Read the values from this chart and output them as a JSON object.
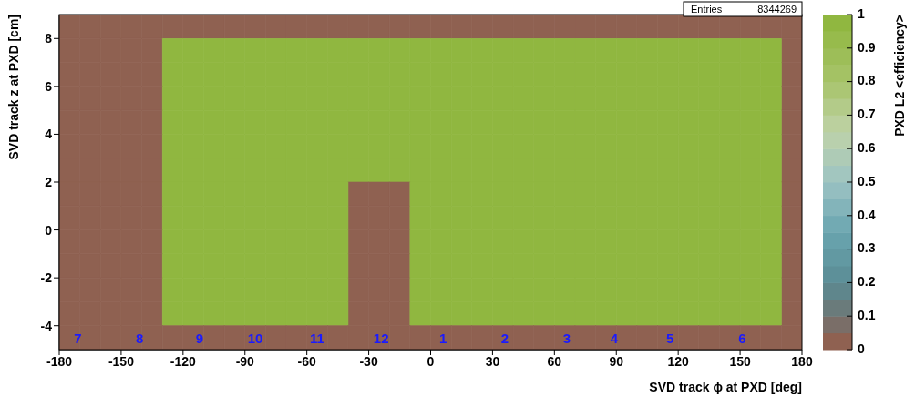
{
  "chart_data": {
    "type": "scatter",
    "marker": "square",
    "xlabel": "SVD track ϕ at PXD [deg]",
    "ylabel": "SVD track z at PXD [cm]",
    "clabel": "PXD L2 <efficiency>",
    "xlim": [
      -180,
      180
    ],
    "xticks": [
      -180,
      -150,
      -120,
      -90,
      -60,
      -30,
      0,
      30,
      60,
      90,
      120,
      150,
      180
    ],
    "ylim": [
      -5,
      9
    ],
    "yticks": [
      -4,
      -2,
      0,
      2,
      4,
      6,
      8
    ],
    "clim": [
      0,
      1
    ],
    "cticks": [
      0,
      0.1,
      0.2,
      0.3,
      0.4,
      0.5,
      0.6,
      0.7,
      0.8,
      0.9,
      1
    ],
    "x": [
      -175,
      -165,
      -155,
      -145,
      -135,
      -125,
      -115,
      -105,
      -95,
      -85,
      -75,
      -65,
      -55,
      -45,
      -35,
      -25,
      -15,
      -5,
      5,
      15,
      25,
      35,
      45,
      55,
      65,
      75,
      85,
      95,
      105,
      115,
      125,
      135,
      145,
      155,
      165,
      175
    ],
    "series": [
      {
        "color": "#8f6151",
        "values": [
          8.5,
          8.5,
          8.5,
          8.5,
          8.5,
          8.5,
          8.5,
          8.5,
          8.5,
          8.5,
          8.5,
          8.5,
          8.5,
          8.5,
          8.5,
          8.5,
          8.5,
          8.5,
          8.5,
          8.5,
          8.5,
          8.5,
          8.5,
          8.5,
          8.5,
          8.5,
          8.5,
          8.5,
          8.5,
          8.5,
          8.5,
          8.5,
          8.5,
          8.5,
          8.5,
          8.5
        ],
        "cvalues": [
          0,
          0,
          0,
          0,
          0,
          0,
          0,
          0,
          0,
          0,
          0,
          0,
          0,
          0,
          0,
          0,
          0,
          0,
          0,
          0,
          0,
          0,
          0,
          0,
          0,
          0,
          0,
          0,
          0,
          0,
          0,
          0,
          0,
          0,
          0,
          0
        ]
      },
      {
        "color": "#8f6151",
        "x": [
          -175,
          -165,
          -155,
          -145,
          -135,
          175
        ],
        "values": [
          7.5,
          7.5,
          7.5,
          7.5,
          7.5,
          7.5
        ],
        "cvalues": [
          0,
          0,
          0,
          0,
          0,
          0
        ]
      },
      {
        "color": "#90b740",
        "x": [
          -125,
          -115,
          -105,
          -95,
          -85,
          -75,
          -65,
          -55,
          -45,
          -35,
          -25,
          -15,
          -5,
          5,
          15,
          25,
          35,
          45,
          55,
          65,
          75,
          85,
          95,
          105,
          115,
          125,
          135,
          145,
          155,
          165
        ],
        "values": [
          7.5,
          7.5,
          7.5,
          7.5,
          7.5,
          7.5,
          7.5,
          7.5,
          7.5,
          7.5,
          7.5,
          7.5,
          7.5,
          7.5,
          7.5,
          7.5,
          7.5,
          7.5,
          7.5,
          7.5,
          7.5,
          7.5,
          7.5,
          7.5,
          7.5,
          7.5,
          7.5,
          7.5,
          7.5,
          7.5
        ],
        "cvalues": [
          0.95,
          0.95,
          0.95,
          0.95,
          0.95,
          0.95,
          0.95,
          0.95,
          0.95,
          0.95,
          0.95,
          0.95,
          0.95,
          0.95,
          0.95,
          0.95,
          0.95,
          0.95,
          0.95,
          0.95,
          0.95,
          0.95,
          0.95,
          0.95,
          0.95,
          0.95,
          0.95,
          0.95,
          0.95,
          0.95
        ]
      },
      {
        "color": "#8f6151",
        "x": [
          -175,
          -165,
          -155,
          -145,
          -135,
          175
        ],
        "values": [
          6.5,
          6.5,
          6.5,
          6.5,
          6.5,
          6.5
        ],
        "cvalues": [
          0,
          0,
          0,
          0,
          0,
          0
        ]
      },
      {
        "color": "#90b740",
        "x": [
          -125,
          -115,
          -105,
          -95,
          -85,
          -75,
          -65,
          -55,
          -45,
          -35,
          -25,
          -15,
          -5,
          5,
          15,
          25,
          35,
          45,
          55,
          65,
          75,
          85,
          95,
          105,
          115,
          125,
          135,
          145,
          155,
          165
        ],
        "values": [
          6.5,
          6.5,
          6.5,
          6.5,
          6.5,
          6.5,
          6.5,
          6.5,
          6.5,
          6.5,
          6.5,
          6.5,
          6.5,
          6.5,
          6.5,
          6.5,
          6.5,
          6.5,
          6.5,
          6.5,
          6.5,
          6.5,
          6.5,
          6.5,
          6.5,
          6.5,
          6.5,
          6.5,
          6.5,
          6.5
        ],
        "cvalues": [
          0.95,
          0.95,
          0.95,
          0.95,
          0.95,
          0.95,
          0.95,
          0.95,
          0.95,
          0.95,
          0.95,
          0.95,
          0.95,
          0.95,
          0.95,
          0.95,
          0.95,
          0.95,
          0.95,
          0.95,
          0.95,
          0.95,
          0.95,
          0.95,
          0.95,
          0.95,
          0.95,
          0.95,
          0.95,
          0.95
        ]
      },
      {
        "color": "#8f6151",
        "x": [
          -175,
          -165,
          -155,
          -145,
          -135,
          175
        ],
        "values": [
          5.5,
          5.5,
          5.5,
          5.5,
          5.5,
          5.5
        ],
        "cvalues": [
          0,
          0,
          0,
          0,
          0,
          0
        ]
      },
      {
        "color": "#90b740",
        "x": [
          -125,
          -115,
          -105,
          -95,
          -85,
          -75,
          -65,
          -55,
          -45,
          -35,
          -25,
          -15,
          -5,
          5,
          15,
          25,
          35,
          45,
          55,
          65,
          75,
          85,
          95,
          105,
          115,
          125,
          135,
          145,
          155,
          165
        ],
        "values": [
          5.5,
          5.5,
          5.5,
          5.5,
          5.5,
          5.5,
          5.5,
          5.5,
          5.5,
          5.5,
          5.5,
          5.5,
          5.5,
          5.5,
          5.5,
          5.5,
          5.5,
          5.5,
          5.5,
          5.5,
          5.5,
          5.5,
          5.5,
          5.5,
          5.5,
          5.5,
          5.5,
          5.5,
          5.5,
          5.5
        ],
        "cvalues": [
          0.95,
          0.95,
          0.95,
          0.95,
          0.95,
          0.95,
          0.95,
          0.95,
          0.95,
          0.95,
          0.95,
          0.95,
          0.95,
          0.95,
          0.95,
          0.95,
          0.95,
          0.95,
          0.95,
          0.95,
          0.95,
          0.95,
          0.95,
          0.95,
          0.95,
          0.95,
          0.95,
          0.95,
          0.95,
          0.95
        ]
      },
      {
        "color": "#8f6151",
        "x": [
          -175,
          -165,
          -155,
          -145,
          -135,
          175
        ],
        "values": [
          4.5,
          4.5,
          4.5,
          4.5,
          4.5,
          4.5
        ],
        "cvalues": [
          0,
          0,
          0,
          0,
          0,
          0
        ]
      },
      {
        "color": "#90b740",
        "x": [
          -125,
          -115,
          -105,
          -95,
          -85,
          -75,
          -65,
          -55,
          -45,
          -35,
          -25,
          -15,
          -5,
          5,
          15,
          25,
          35,
          45,
          55,
          65,
          75,
          85,
          95,
          105,
          115,
          125,
          135,
          145,
          155,
          165
        ],
        "values": [
          4.5,
          4.5,
          4.5,
          4.5,
          4.5,
          4.5,
          4.5,
          4.5,
          4.5,
          4.5,
          4.5,
          4.5,
          4.5,
          4.5,
          4.5,
          4.5,
          4.5,
          4.5,
          4.5,
          4.5,
          4.5,
          4.5,
          4.5,
          4.5,
          4.5,
          4.5,
          4.5,
          4.5,
          4.5,
          4.5
        ],
        "cvalues": [
          0.95,
          0.95,
          0.95,
          0.95,
          0.95,
          0.95,
          0.95,
          0.95,
          0.95,
          0.95,
          0.95,
          0.95,
          0.95,
          0.95,
          0.95,
          0.95,
          0.95,
          0.95,
          0.95,
          0.95,
          0.95,
          0.95,
          0.95,
          0.95,
          0.95,
          0.95,
          0.95,
          0.95,
          0.95,
          0.95
        ]
      },
      {
        "color": "#8f6151",
        "x": [
          -175,
          -165,
          -155,
          -145,
          -135,
          175
        ],
        "values": [
          3.5,
          3.5,
          3.5,
          3.5,
          3.5,
          3.5
        ],
        "cvalues": [
          0,
          0,
          0,
          0,
          0,
          0
        ]
      },
      {
        "color": "#90b740",
        "x": [
          -125,
          -115,
          -105,
          -95,
          -85,
          -75,
          -65,
          -55,
          -45,
          -35,
          -25,
          -15,
          -5,
          5,
          15,
          25,
          35,
          45,
          55,
          65,
          75,
          85,
          95,
          105,
          115,
          125,
          135,
          145,
          155,
          165
        ],
        "values": [
          3.5,
          3.5,
          3.5,
          3.5,
          3.5,
          3.5,
          3.5,
          3.5,
          3.5,
          3.5,
          3.5,
          3.5,
          3.5,
          3.5,
          3.5,
          3.5,
          3.5,
          3.5,
          3.5,
          3.5,
          3.5,
          3.5,
          3.5,
          3.5,
          3.5,
          3.5,
          3.5,
          3.5,
          3.5,
          3.5
        ],
        "cvalues": [
          0.95,
          0.95,
          0.95,
          0.95,
          0.95,
          0.95,
          0.95,
          0.95,
          0.95,
          0.95,
          0.95,
          0.95,
          0.95,
          0.95,
          0.95,
          0.95,
          0.95,
          0.95,
          0.95,
          0.95,
          0.95,
          0.95,
          0.95,
          0.95,
          0.95,
          0.95,
          0.95,
          0.95,
          0.95,
          0.95
        ]
      },
      {
        "color": "#8f6151",
        "x": [
          -175,
          -165,
          -155,
          -145,
          -135,
          175
        ],
        "values": [
          2.5,
          2.5,
          2.5,
          2.5,
          2.5,
          2.5
        ],
        "cvalues": [
          0,
          0,
          0,
          0,
          0,
          0
        ]
      },
      {
        "color": "#90b740",
        "x": [
          -125,
          -115,
          -105,
          -95,
          -85,
          -75,
          -65,
          -55,
          -45,
          -35,
          -25,
          -15,
          -5,
          5,
          15,
          25,
          35,
          45,
          55,
          65,
          75,
          85,
          95,
          105,
          115,
          125,
          135,
          145,
          155,
          165
        ],
        "values": [
          2.5,
          2.5,
          2.5,
          2.5,
          2.5,
          2.5,
          2.5,
          2.5,
          2.5,
          2.5,
          2.5,
          2.5,
          2.5,
          2.5,
          2.5,
          2.5,
          2.5,
          2.5,
          2.5,
          2.5,
          2.5,
          2.5,
          2.5,
          2.5,
          2.5,
          2.5,
          2.5,
          2.5,
          2.5,
          2.5
        ],
        "cvalues": [
          0.95,
          0.95,
          0.95,
          0.95,
          0.95,
          0.95,
          0.95,
          0.95,
          0.95,
          0.95,
          0.95,
          0.95,
          0.95,
          0.95,
          0.95,
          0.95,
          0.95,
          0.95,
          0.95,
          0.95,
          0.95,
          0.95,
          0.95,
          0.95,
          0.95,
          0.95,
          0.95,
          0.95,
          0.95,
          0.95
        ]
      },
      {
        "color": "#8f6151",
        "x": [
          -175,
          -165,
          -155,
          -145,
          -135,
          -35,
          -25,
          -15,
          175
        ],
        "values": [
          1.5,
          1.5,
          1.5,
          1.5,
          1.5,
          1.5,
          1.5,
          1.5,
          1.5
        ],
        "cvalues": [
          0,
          0,
          0,
          0,
          0,
          0,
          0,
          0,
          0
        ]
      },
      {
        "color": "#90b740",
        "x": [
          -125,
          -115,
          -105,
          -95,
          -85,
          -75,
          -65,
          -55,
          -45,
          -5,
          5,
          15,
          25,
          35,
          45,
          55,
          65,
          75,
          85,
          95,
          105,
          115,
          125,
          135,
          145,
          155,
          165
        ],
        "values": [
          1.5,
          1.5,
          1.5,
          1.5,
          1.5,
          1.5,
          1.5,
          1.5,
          1.5,
          1.5,
          1.5,
          1.5,
          1.5,
          1.5,
          1.5,
          1.5,
          1.5,
          1.5,
          1.5,
          1.5,
          1.5,
          1.5,
          1.5,
          1.5,
          1.5,
          1.5,
          1.5
        ],
        "cvalues": [
          0.95,
          0.95,
          0.95,
          0.95,
          0.95,
          0.95,
          0.95,
          0.95,
          0.95,
          0.95,
          0.95,
          0.95,
          0.95,
          0.95,
          0.95,
          0.95,
          0.95,
          0.95,
          0.95,
          0.95,
          0.95,
          0.95,
          0.95,
          0.95,
          0.95,
          0.95,
          0.95
        ]
      },
      {
        "color": "#8f6151",
        "x": [
          -175,
          -165,
          -155,
          -145,
          -135,
          -35,
          -25,
          -15,
          175
        ],
        "values": [
          0.5,
          0.5,
          0.5,
          0.5,
          0.5,
          0.5,
          0.5,
          0.5,
          0.5
        ],
        "cvalues": [
          0,
          0,
          0,
          0,
          0,
          0,
          0,
          0,
          0
        ]
      },
      {
        "color": "#90b740",
        "x": [
          -125,
          -115,
          -105,
          -95,
          -85,
          -75,
          -65,
          -55,
          -45,
          -5,
          5,
          15,
          25,
          35,
          45,
          55,
          65,
          75,
          85,
          95,
          105,
          115,
          125,
          135,
          145,
          155,
          165
        ],
        "values": [
          0.5,
          0.5,
          0.5,
          0.5,
          0.5,
          0.5,
          0.5,
          0.5,
          0.5,
          0.5,
          0.5,
          0.5,
          0.5,
          0.5,
          0.5,
          0.5,
          0.5,
          0.5,
          0.5,
          0.5,
          0.5,
          0.5,
          0.5,
          0.5,
          0.5,
          0.5,
          0.5
        ],
        "cvalues": [
          0.95,
          0.95,
          0.95,
          0.95,
          0.95,
          0.95,
          0.95,
          0.95,
          0.95,
          0.95,
          0.95,
          0.95,
          0.95,
          0.95,
          0.95,
          0.95,
          0.95,
          0.95,
          0.95,
          0.95,
          0.95,
          0.95,
          0.95,
          0.95,
          0.95,
          0.95,
          0.95
        ]
      },
      {
        "color": "#8f6151",
        "x": [
          -175,
          -165,
          -155,
          -145,
          -135,
          -35,
          -25,
          -15,
          175
        ],
        "values": [
          -0.5,
          -0.5,
          -0.5,
          -0.5,
          -0.5,
          -0.5,
          -0.5,
          -0.5,
          -0.5
        ],
        "cvalues": [
          0,
          0,
          0,
          0,
          0,
          0,
          0,
          0,
          0
        ]
      },
      {
        "color": "#90b740",
        "x": [
          -125,
          -115,
          -105,
          -95,
          -85,
          -75,
          -65,
          -55,
          -45,
          -5,
          5,
          15,
          25,
          35,
          45,
          55,
          65,
          75,
          85,
          95,
          105,
          115,
          125,
          135,
          145,
          155,
          165
        ],
        "values": [
          -0.5,
          -0.5,
          -0.5,
          -0.5,
          -0.5,
          -0.5,
          -0.5,
          -0.5,
          -0.5,
          -0.5,
          -0.5,
          -0.5,
          -0.5,
          -0.5,
          -0.5,
          -0.5,
          -0.5,
          -0.5,
          -0.5,
          -0.5,
          -0.5,
          -0.5,
          -0.5,
          -0.5,
          -0.5,
          -0.5,
          -0.5
        ],
        "cvalues": [
          0.95,
          0.95,
          0.95,
          0.95,
          0.95,
          0.95,
          0.95,
          0.95,
          0.95,
          0.95,
          0.95,
          0.95,
          0.95,
          0.95,
          0.95,
          0.95,
          0.95,
          0.95,
          0.95,
          0.95,
          0.95,
          0.95,
          0.95,
          0.95,
          0.95,
          0.95,
          0.95
        ]
      },
      {
        "color": "#8f6151",
        "x": [
          -175,
          -165,
          -155,
          -145,
          -135,
          -35,
          -25,
          -15,
          175
        ],
        "values": [
          -1.5,
          -1.5,
          -1.5,
          -1.5,
          -1.5,
          -1.5,
          -1.5,
          -1.5,
          -1.5
        ],
        "cvalues": [
          0,
          0,
          0,
          0,
          0,
          0,
          0,
          0,
          0
        ]
      },
      {
        "color": "#90b740",
        "x": [
          -125,
          -115,
          -105,
          -95,
          -85,
          -75,
          -65,
          -55,
          -45,
          -5,
          5,
          15,
          25,
          35,
          45,
          55,
          65,
          75,
          85,
          95,
          105,
          115,
          125,
          135,
          145,
          155,
          165
        ],
        "values": [
          -1.5,
          -1.5,
          -1.5,
          -1.5,
          -1.5,
          -1.5,
          -1.5,
          -1.5,
          -1.5,
          -1.5,
          -1.5,
          -1.5,
          -1.5,
          -1.5,
          -1.5,
          -1.5,
          -1.5,
          -1.5,
          -1.5,
          -1.5,
          -1.5,
          -1.5,
          -1.5,
          -1.5,
          -1.5,
          -1.5,
          -1.5
        ],
        "cvalues": [
          0.95,
          0.95,
          0.95,
          0.95,
          0.95,
          0.95,
          0.95,
          0.95,
          0.95,
          0.95,
          0.95,
          0.95,
          0.95,
          0.95,
          0.95,
          0.95,
          0.95,
          0.95,
          0.95,
          0.95,
          0.95,
          0.95,
          0.95,
          0.95,
          0.95,
          0.95,
          0.95
        ]
      },
      {
        "color": "#8f6151",
        "x": [
          -175,
          -165,
          -155,
          -145,
          -135,
          -35,
          -25,
          -15,
          175
        ],
        "values": [
          -2.5,
          -2.5,
          -2.5,
          -2.5,
          -2.5,
          -2.5,
          -2.5,
          -2.5,
          -2.5
        ],
        "cvalues": [
          0,
          0,
          0,
          0,
          0,
          0,
          0,
          0,
          0
        ]
      },
      {
        "color": "#90b740",
        "x": [
          -125,
          -115,
          -105,
          -95,
          -85,
          -75,
          -65,
          -55,
          -45,
          -5,
          5,
          15,
          25,
          35,
          45,
          55,
          65,
          75,
          85,
          95,
          105,
          115,
          125,
          135,
          145,
          155,
          165
        ],
        "values": [
          -2.5,
          -2.5,
          -2.5,
          -2.5,
          -2.5,
          -2.5,
          -2.5,
          -2.5,
          -2.5,
          -2.5,
          -2.5,
          -2.5,
          -2.5,
          -2.5,
          -2.5,
          -2.5,
          -2.5,
          -2.5,
          -2.5,
          -2.5,
          -2.5,
          -2.5,
          -2.5,
          -2.5,
          -2.5,
          -2.5,
          -2.5
        ],
        "cvalues": [
          0.95,
          0.95,
          0.95,
          0.95,
          0.95,
          0.95,
          0.95,
          0.95,
          0.95,
          0.95,
          0.95,
          0.95,
          0.95,
          0.95,
          0.95,
          0.95,
          0.95,
          0.95,
          0.95,
          0.95,
          0.95,
          0.95,
          0.95,
          0.95,
          0.95,
          0.95,
          0.95
        ]
      },
      {
        "color": "#8f6151",
        "x": [
          -175,
          -165,
          -155,
          -145,
          -135,
          -35,
          -25,
          -15,
          175
        ],
        "values": [
          -3.5,
          -3.5,
          -3.5,
          -3.5,
          -3.5,
          -3.5,
          -3.5,
          -3.5,
          -3.5
        ],
        "cvalues": [
          0,
          0,
          0,
          0,
          0,
          0,
          0,
          0,
          0
        ]
      },
      {
        "color": "#90b740",
        "x": [
          -125,
          -115,
          -105,
          -95,
          -85,
          -75,
          -65,
          -55,
          -45,
          -5,
          5,
          15,
          25,
          35,
          45,
          55,
          65,
          75,
          85,
          95,
          105,
          115,
          125,
          135,
          145,
          155,
          165
        ],
        "values": [
          -3.5,
          -3.5,
          -3.5,
          -3.5,
          -3.5,
          -3.5,
          -3.5,
          -3.5,
          -3.5,
          -3.5,
          -3.5,
          -3.5,
          -3.5,
          -3.5,
          -3.5,
          -3.5,
          -3.5,
          -3.5,
          -3.5,
          -3.5,
          -3.5,
          -3.5,
          -3.5,
          -3.5,
          -3.5,
          -3.5,
          -3.5
        ],
        "cvalues": [
          0.95,
          0.95,
          0.95,
          0.95,
          0.95,
          0.95,
          0.95,
          0.95,
          0.95,
          0.95,
          0.95,
          0.95,
          0.95,
          0.95,
          0.95,
          0.95,
          0.95,
          0.95,
          0.95,
          0.95,
          0.95,
          0.95,
          0.95,
          0.95,
          0.95,
          0.95,
          0.95
        ]
      },
      {
        "color": "#8f6151",
        "values": [
          -4.5,
          -4.5,
          -4.5,
          -4.5,
          -4.5,
          -4.5,
          -4.5,
          -4.5,
          -4.5,
          -4.5,
          -4.5,
          -4.5,
          -4.5,
          -4.5,
          -4.5,
          -4.5,
          -4.5,
          -4.5,
          -4.5,
          -4.5,
          -4.5,
          -4.5,
          -4.5,
          -4.5,
          -4.5,
          -4.5,
          -4.5,
          -4.5,
          -4.5,
          -4.5,
          -4.5,
          -4.5,
          -4.5,
          -4.5,
          -4.5,
          -4.5
        ],
        "cvalues": [
          0,
          0,
          0,
          0,
          0,
          0,
          0,
          0,
          0,
          0,
          0,
          0,
          0,
          0,
          0,
          0,
          0,
          0,
          0,
          0,
          0,
          0,
          0,
          0,
          0,
          0,
          0,
          0,
          0,
          0,
          0,
          0,
          0,
          0,
          0,
          0
        ]
      }
    ],
    "annotations": [
      "Entries",
      "8344269",
      {
        "text": "7",
        "x": -171,
        "y": -4.6
      },
      {
        "text": "8",
        "x": -141,
        "y": -4.6
      },
      {
        "text": "9",
        "x": -112,
        "y": -4.6
      },
      {
        "text": "10",
        "x": -85,
        "y": -4.6
      },
      {
        "text": "11",
        "x": -55,
        "y": -4.6
      },
      {
        "text": "12",
        "x": -24,
        "y": -4.6
      },
      {
        "text": "1",
        "x": 6,
        "y": -4.6
      },
      {
        "text": "2",
        "x": 36,
        "y": -4.6
      },
      {
        "text": "3",
        "x": 66,
        "y": -4.6
      },
      {
        "text": "4",
        "x": 89,
        "y": -4.6
      },
      {
        "text": "5",
        "x": 116,
        "y": -4.6
      },
      {
        "text": "6",
        "x": 151,
        "y": -4.6
      }
    ]
  }
}
